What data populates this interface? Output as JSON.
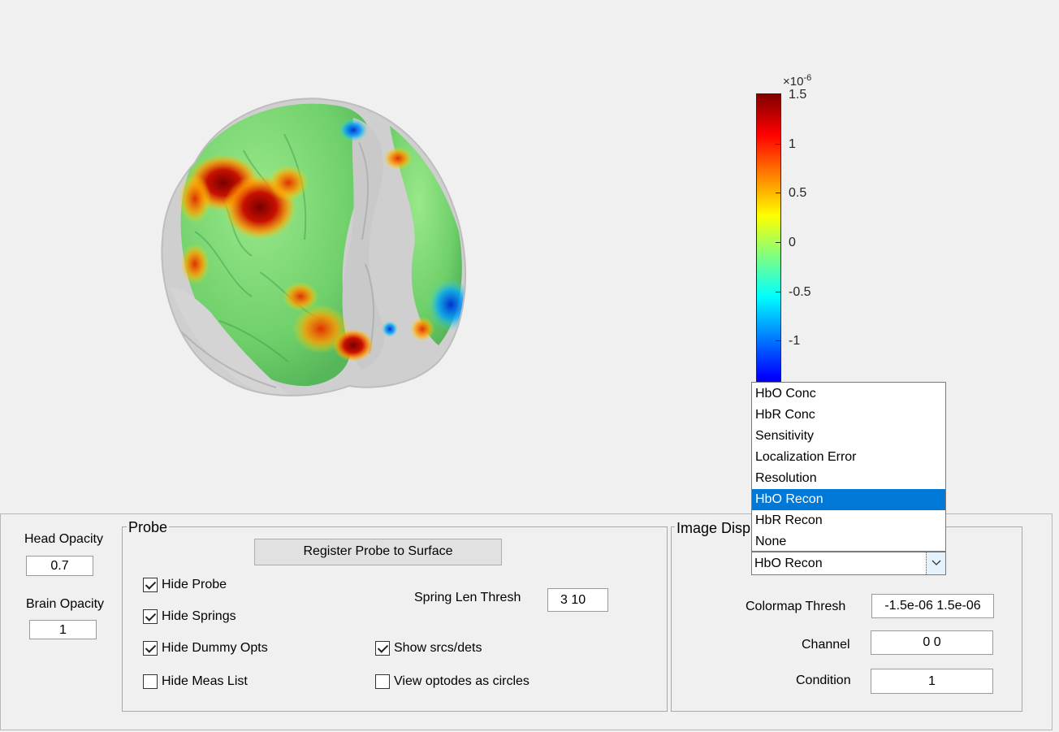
{
  "colorbar": {
    "exponent_base": "×10",
    "exponent_power": "-6",
    "ticks": [
      "1.5",
      "1",
      "0.5",
      "0",
      "-0.5",
      "-1"
    ]
  },
  "head_opacity": {
    "label": "Head Opacity",
    "value": "0.7"
  },
  "brain_opacity": {
    "label": "Brain Opacity",
    "value": "1"
  },
  "probe": {
    "title": "Probe",
    "register_button": "Register Probe to Surface",
    "spring_len_label": "Spring Len Thresh",
    "spring_len_value": "3  10",
    "hide_probe": {
      "label": "Hide Probe",
      "checked": true
    },
    "hide_springs": {
      "label": "Hide Springs",
      "checked": true
    },
    "hide_dummy_opts": {
      "label": "Hide Dummy Opts",
      "checked": true
    },
    "hide_meas_list": {
      "label": "Hide Meas List",
      "checked": false
    },
    "show_srcs_dets": {
      "label": "Show srcs/dets",
      "checked": true
    },
    "view_optodes_circles": {
      "label": "View optodes as circles",
      "checked": false
    }
  },
  "image_display": {
    "title": "Image Disp",
    "selected": "HbO Recon",
    "options": [
      "HbO Conc",
      "HbR Conc",
      "Sensitivity",
      "Localization Error",
      "Resolution",
      "HbO Recon",
      "HbR Recon",
      "None"
    ],
    "colormap_thresh_label": "Colormap Thresh",
    "colormap_thresh_value": "-1.5e-06 1.5e-06",
    "channel_label": "Channel",
    "channel_value": "0 0",
    "condition_label": "Condition",
    "condition_value": "1"
  }
}
